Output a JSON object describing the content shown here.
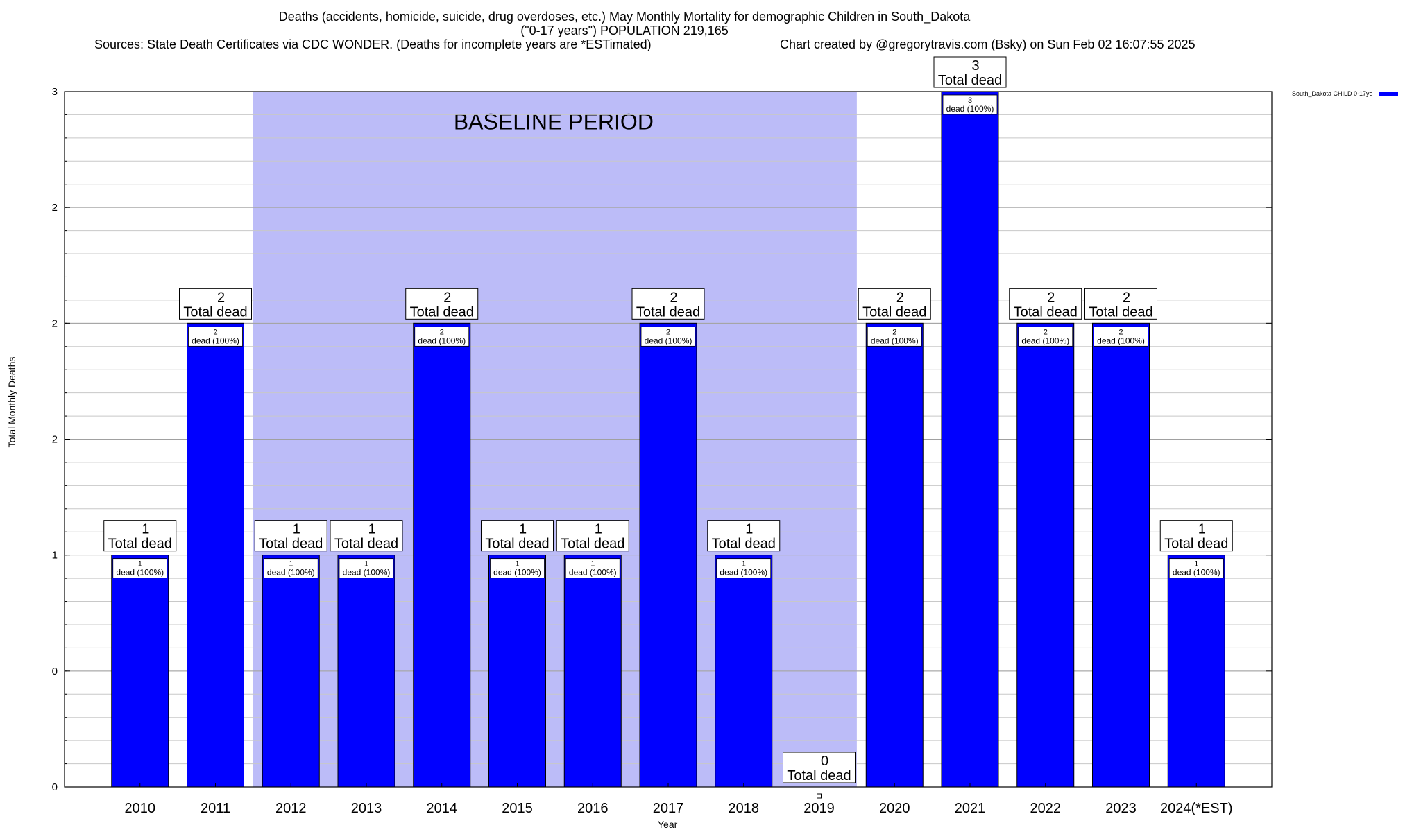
{
  "header": {
    "title_line1": "Deaths (accidents, homicide, suicide, drug overdoses, etc.) May Monthly Mortality for demographic Children in South_Dakota",
    "title_line2": "(\"0-17 years\") POPULATION 219,165",
    "sources": "Sources: State Death Certificates via CDC WONDER. (Deaths for incomplete years are *ESTimated)",
    "credit": "Chart created by @gregorytravis.com (Bsky) on Sun Feb 02 16:07:55 2025"
  },
  "colors": {
    "bar": "#0000ff",
    "baseline_shade": "#bcbcf8",
    "grid": "#c8c8c8"
  },
  "chart_data": {
    "type": "bar",
    "title": "Deaths (accidents, homicide, suicide, drug overdoses, etc.) May Monthly Mortality for demographic Children in South_Dakota",
    "subtitle": "(\"0-17 years\") POPULATION 219,165",
    "xlabel": "Year",
    "ylabel": "Total Monthly Deaths",
    "categories": [
      "2010",
      "2011",
      "2012",
      "2013",
      "2014",
      "2015",
      "2016",
      "2017",
      "2018",
      "2019",
      "2020",
      "2021",
      "2022",
      "2023",
      "2024(*EST)"
    ],
    "series": [
      {
        "name": "South_Dakota CHILD 0-17yo",
        "values": [
          1,
          2,
          1,
          1,
          2,
          1,
          1,
          2,
          1,
          0,
          2,
          3,
          2,
          2,
          1
        ]
      }
    ],
    "ylim": [
      0,
      3
    ],
    "y_ticks": [
      0,
      0.5,
      1,
      1.5,
      2,
      2.5,
      3
    ],
    "y_tick_labels": [
      "0",
      "0",
      "1",
      "2",
      "2",
      "2",
      "3"
    ],
    "grid": true,
    "legend_position": "top-right",
    "baseline": {
      "label": "BASELINE PERIOD",
      "from": "2012",
      "to": "2019"
    },
    "bar_top_label": "Total dead",
    "bar_inner_label": "dead (100%)"
  }
}
